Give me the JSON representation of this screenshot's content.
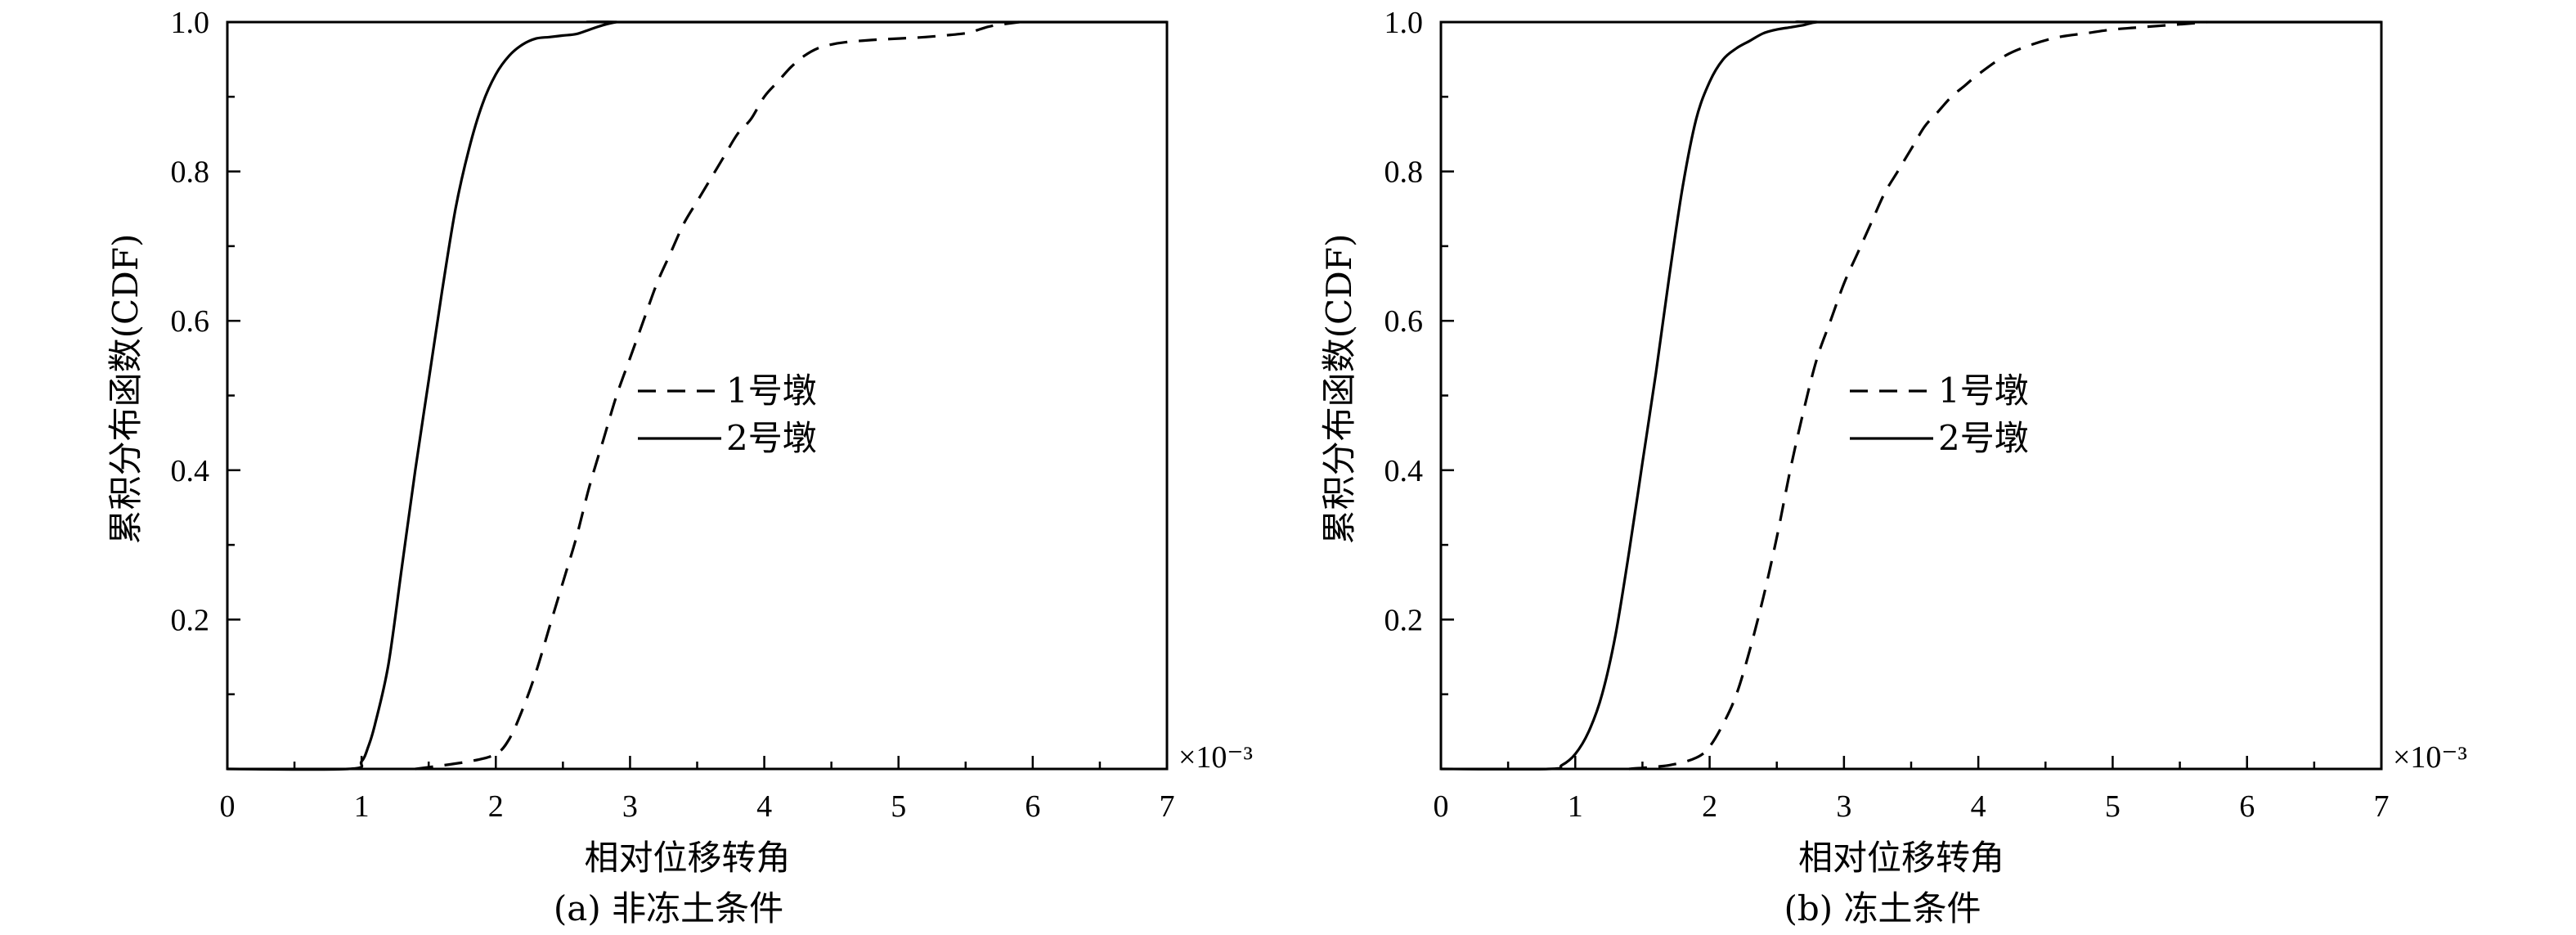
{
  "chart_data": [
    {
      "type": "line",
      "caption": "(a) 非冻土条件",
      "xlabel": "相对位移转角",
      "ylabel": "累积分布函数(CDF)",
      "x_multiplier": "×10⁻³",
      "xlim": [
        0,
        7
      ],
      "ylim": [
        0,
        1.0
      ],
      "xticks": [
        "0",
        "1",
        "2",
        "3",
        "4",
        "5",
        "6",
        "7"
      ],
      "yticks": [
        "0.2",
        "0.4",
        "0.6",
        "0.8",
        "1.0"
      ],
      "grid": false,
      "legend_position": "center-right",
      "series": [
        {
          "name": "1号墩",
          "style": "dashed",
          "color": "#000000",
          "x": [
            1.4,
            1.8,
            2.0,
            2.1,
            2.2,
            2.3,
            2.4,
            2.5,
            2.6,
            2.7,
            2.8,
            2.9,
            3.0,
            3.1,
            3.2,
            3.3,
            3.4,
            3.5,
            3.6,
            3.7,
            3.8,
            3.9,
            4.0,
            4.1,
            4.2,
            4.3,
            4.4,
            4.5,
            4.6,
            4.8,
            5.0,
            5.2,
            5.5,
            5.6,
            5.7,
            5.9
          ],
          "y": [
            0.0,
            0.01,
            0.02,
            0.04,
            0.08,
            0.13,
            0.19,
            0.25,
            0.31,
            0.38,
            0.44,
            0.5,
            0.55,
            0.6,
            0.65,
            0.69,
            0.73,
            0.76,
            0.79,
            0.82,
            0.85,
            0.87,
            0.9,
            0.92,
            0.94,
            0.955,
            0.965,
            0.97,
            0.973,
            0.976,
            0.978,
            0.98,
            0.985,
            0.99,
            0.995,
            1.0
          ]
        },
        {
          "name": "2号墩",
          "style": "solid",
          "color": "#000000",
          "x": [
            0.0,
            0.9,
            1.0,
            1.05,
            1.1,
            1.2,
            1.3,
            1.4,
            1.5,
            1.6,
            1.7,
            1.8,
            1.9,
            2.0,
            2.1,
            2.2,
            2.3,
            2.4,
            2.5,
            2.6,
            2.7,
            2.8,
            2.9,
            3.0,
            7.0
          ],
          "y": [
            0.0,
            0.0,
            0.01,
            0.03,
            0.06,
            0.14,
            0.27,
            0.4,
            0.52,
            0.64,
            0.75,
            0.83,
            0.89,
            0.93,
            0.955,
            0.97,
            0.978,
            0.98,
            0.982,
            0.984,
            0.99,
            0.996,
            1.0,
            1.0,
            1.0
          ]
        }
      ]
    },
    {
      "type": "line",
      "caption": "(b) 冻土条件",
      "xlabel": "相对位移转角",
      "ylabel": "累积分布函数(CDF)",
      "x_multiplier": "×10⁻³",
      "xlim": [
        0,
        7
      ],
      "ylim": [
        0,
        1.0
      ],
      "xticks": [
        "0",
        "1",
        "2",
        "3",
        "4",
        "5",
        "6",
        "7"
      ],
      "yticks": [
        "0.2",
        "0.4",
        "0.6",
        "0.8",
        "1.0"
      ],
      "grid": false,
      "legend_position": "center-right",
      "series": [
        {
          "name": "1号墩",
          "style": "dashed",
          "color": "#000000",
          "x": [
            1.4,
            1.7,
            1.9,
            2.0,
            2.1,
            2.2,
            2.3,
            2.4,
            2.5,
            2.6,
            2.7,
            2.8,
            2.9,
            3.0,
            3.1,
            3.2,
            3.3,
            3.4,
            3.5,
            3.6,
            3.7,
            3.8,
            3.9,
            4.0,
            4.2,
            4.4,
            4.6,
            4.8,
            5.0,
            5.2,
            5.5,
            5.7
          ],
          "y": [
            0.0,
            0.005,
            0.015,
            0.03,
            0.06,
            0.1,
            0.16,
            0.23,
            0.31,
            0.4,
            0.48,
            0.55,
            0.6,
            0.65,
            0.69,
            0.73,
            0.77,
            0.8,
            0.83,
            0.86,
            0.88,
            0.9,
            0.915,
            0.93,
            0.955,
            0.97,
            0.98,
            0.985,
            0.99,
            0.993,
            0.997,
            1.0
          ]
        },
        {
          "name": "2号墩",
          "style": "solid",
          "color": "#000000",
          "x": [
            0.0,
            0.8,
            0.9,
            1.0,
            1.1,
            1.2,
            1.3,
            1.4,
            1.5,
            1.6,
            1.7,
            1.8,
            1.9,
            2.0,
            2.1,
            2.2,
            2.3,
            2.4,
            2.5,
            2.6,
            2.7,
            2.8,
            3.0,
            7.0
          ],
          "y": [
            0.0,
            0.0,
            0.005,
            0.02,
            0.05,
            0.1,
            0.18,
            0.29,
            0.41,
            0.53,
            0.66,
            0.78,
            0.87,
            0.92,
            0.95,
            0.965,
            0.975,
            0.985,
            0.99,
            0.993,
            0.996,
            1.0,
            1.0,
            1.0
          ]
        }
      ]
    }
  ]
}
